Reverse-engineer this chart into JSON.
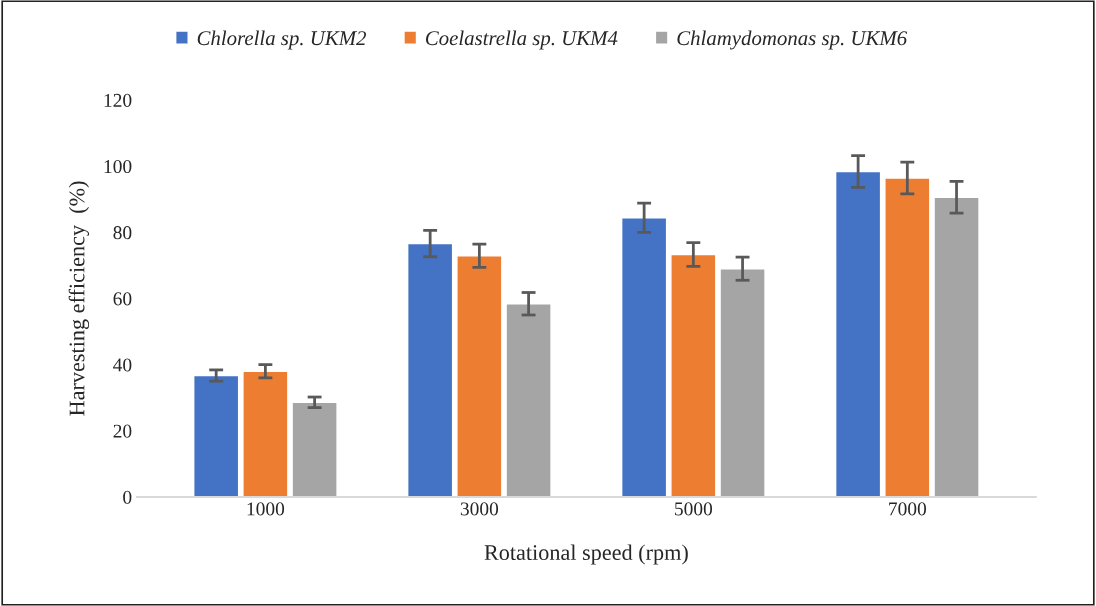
{
  "chart_data": {
    "type": "bar",
    "xlabel": "Rotational speed (rpm)",
    "ylabel": "Harvesting efficiency  (%)",
    "categories": [
      "1000",
      "3000",
      "5000",
      "7000"
    ],
    "series": [
      {
        "name": "Chlorella sp. UKM2",
        "color": "#4472c4",
        "values": [
          36.7,
          76.6,
          84.4,
          98.4
        ],
        "errors": [
          1.7,
          4.0,
          4.4,
          4.8
        ]
      },
      {
        "name": "Coelastrella sp. UKM4",
        "color": "#ed7d31",
        "values": [
          38.0,
          72.9,
          73.3,
          96.4
        ],
        "errors": [
          2.0,
          3.5,
          3.6,
          4.8
        ]
      },
      {
        "name": "Chlamydomonas sp. UKM6",
        "color": "#a5a5a5",
        "values": [
          28.6,
          58.4,
          69.0,
          90.6
        ],
        "errors": [
          1.6,
          3.4,
          3.5,
          4.8
        ]
      }
    ],
    "ylim": [
      0,
      120
    ],
    "yticks": [
      0,
      20,
      40,
      60,
      80,
      100,
      120
    ],
    "grid": false,
    "legend": "top"
  }
}
